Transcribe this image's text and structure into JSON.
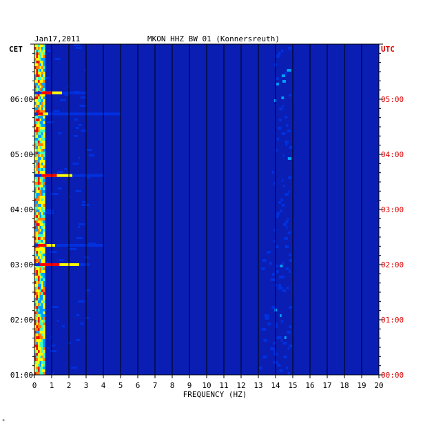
{
  "header": {
    "date": "Jan17,2011",
    "station": "MKON HHZ BW 01 (Konnersreuth)",
    "left_tz": "CET",
    "right_tz": "UTC"
  },
  "footer_mark": "*",
  "chart_data": {
    "type": "heatmap",
    "title": "MKON HHZ BW 01 (Konnersreuth)",
    "date_label": "Jan17,2011",
    "xlabel": "FREQUENCY (HZ)",
    "xlim": [
      0,
      20
    ],
    "x_ticks": [
      "0",
      "1",
      "2",
      "3",
      "4",
      "5",
      "6",
      "7",
      "8",
      "9",
      "10",
      "11",
      "12",
      "13",
      "14",
      "15",
      "16",
      "17",
      "18",
      "19",
      "20"
    ],
    "ylabel_left": "CET",
    "ylabel_right": "UTC",
    "y_ticks_left": [
      "01:00",
      "02:00",
      "03:00",
      "04:00",
      "05:00",
      "06:00"
    ],
    "y_ticks_right": [
      "00:00",
      "01:00",
      "02:00",
      "03:00",
      "04:00",
      "05:00"
    ],
    "time_range_cet": [
      "01:00",
      "07:00"
    ],
    "colormap": [
      "#0000a0",
      "#0030e0",
      "#00a0ff",
      "#40ffc0",
      "#ffff00",
      "#ff8000",
      "#ff0000"
    ],
    "background_color": "#0a1eb4",
    "strong_events": [
      {
        "time_cet": "06:07",
        "freq_max_hz": 3.0,
        "peak_hz": [
          0.4,
          1.6
        ]
      },
      {
        "time_cet": "04:37",
        "freq_max_hz": 4.0,
        "peak_hz": [
          0.4,
          2.2
        ]
      },
      {
        "time_cet": "05:44",
        "freq_max_hz": 5.0,
        "peak_hz": [
          0.2,
          0.8
        ]
      },
      {
        "time_cet": "03:00",
        "freq_max_hz": 3.2,
        "peak_hz": [
          0.3,
          2.6
        ]
      },
      {
        "time_cet": "03:21",
        "freq_max_hz": 4.0,
        "peak_hz": [
          0.2,
          1.2
        ]
      }
    ],
    "persistent_band_hz": [
      13.8,
      14.8
    ]
  }
}
